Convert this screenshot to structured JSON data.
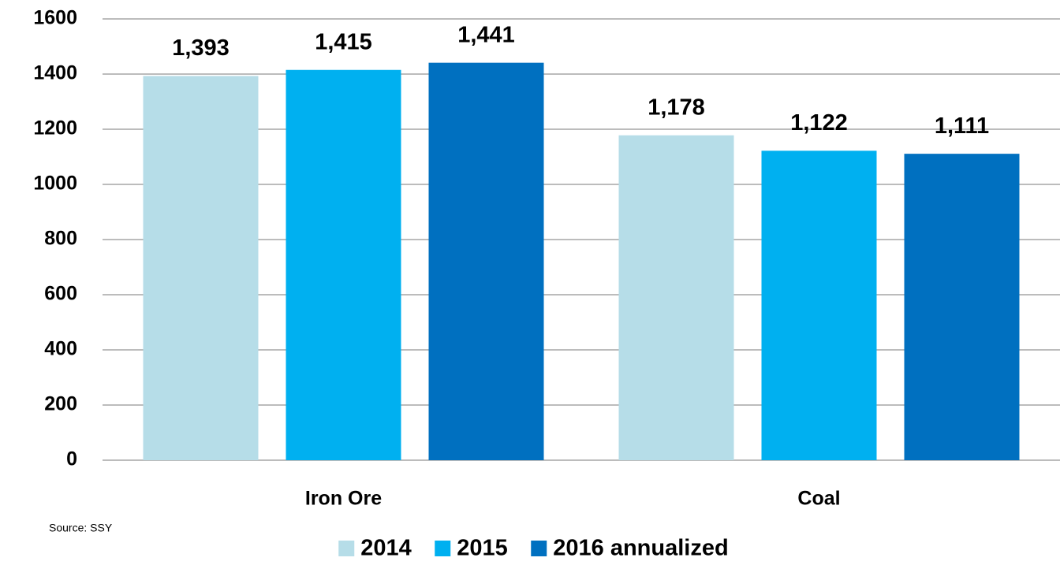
{
  "chart_data": {
    "type": "bar",
    "categories": [
      "Iron Ore",
      "Coal"
    ],
    "series": [
      {
        "name": "2014",
        "color": "#b6dde8",
        "values": [
          1393,
          1178
        ],
        "value_labels": [
          "1,393",
          "1,178"
        ]
      },
      {
        "name": "2015",
        "color": "#00b0f0",
        "values": [
          1415,
          1122
        ],
        "value_labels": [
          "1,415",
          "1,122"
        ]
      },
      {
        "name": "2016 annualized",
        "color": "#0070c0",
        "values": [
          1441,
          1111
        ],
        "value_labels": [
          "1,441",
          "1,111"
        ]
      }
    ],
    "ylim": [
      0,
      1600
    ],
    "yticks": [
      0,
      200,
      400,
      600,
      800,
      1000,
      1200,
      1400,
      1600
    ],
    "grid": true,
    "legend": "bottom",
    "source": "Source: SSY"
  }
}
